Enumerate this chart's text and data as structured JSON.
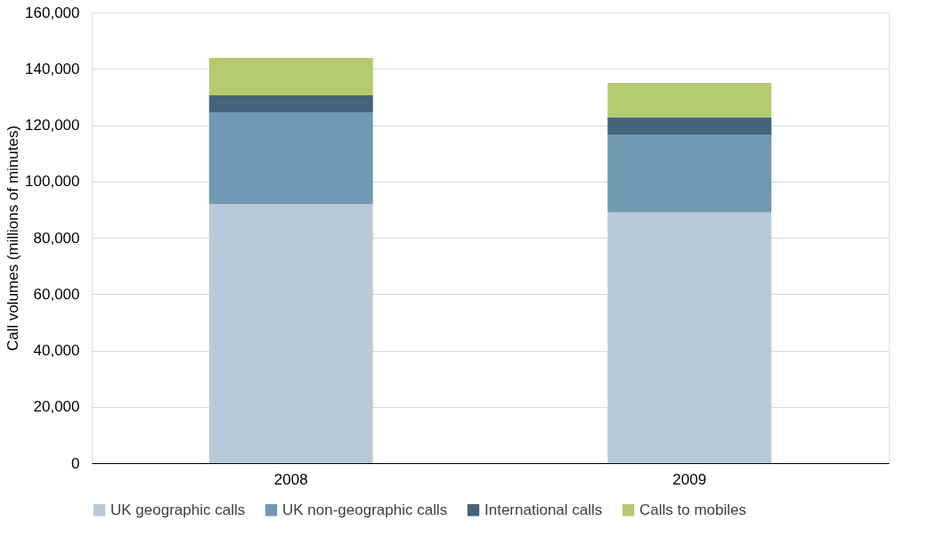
{
  "chart_data": {
    "type": "bar",
    "stacked": true,
    "ylabel": "Call volumes (millions of minutes)",
    "categories": [
      "2008",
      "2009"
    ],
    "series": [
      {
        "name": "UK geographic calls",
        "color": "#b8cad8",
        "values": [
          92000,
          89000
        ]
      },
      {
        "name": "UK non-geographic calls",
        "color": "#7099b3",
        "values": [
          32600,
          27700
        ]
      },
      {
        "name": "International calls",
        "color": "#45637a",
        "values": [
          6000,
          6000
        ]
      },
      {
        "name": "Calls to mobiles",
        "color": "#b3cb6e",
        "values": [
          13300,
          12300
        ]
      }
    ],
    "ylim": [
      0,
      160000
    ],
    "yticks": [
      0,
      {
        "value": 20000,
        "label": "20,000"
      },
      {
        "value": 40000,
        "label": "40,000"
      },
      {
        "value": 60000,
        "label": "60,000"
      },
      {
        "value": 80000,
        "label": "80,000"
      },
      {
        "value": 100000,
        "label": "100,000"
      },
      {
        "value": 120000,
        "label": "120,000"
      },
      {
        "value": 140000,
        "label": "140,000"
      },
      {
        "value": 160000,
        "label": "160,000"
      }
    ],
    "grid": "y",
    "legend": "bottom"
  }
}
